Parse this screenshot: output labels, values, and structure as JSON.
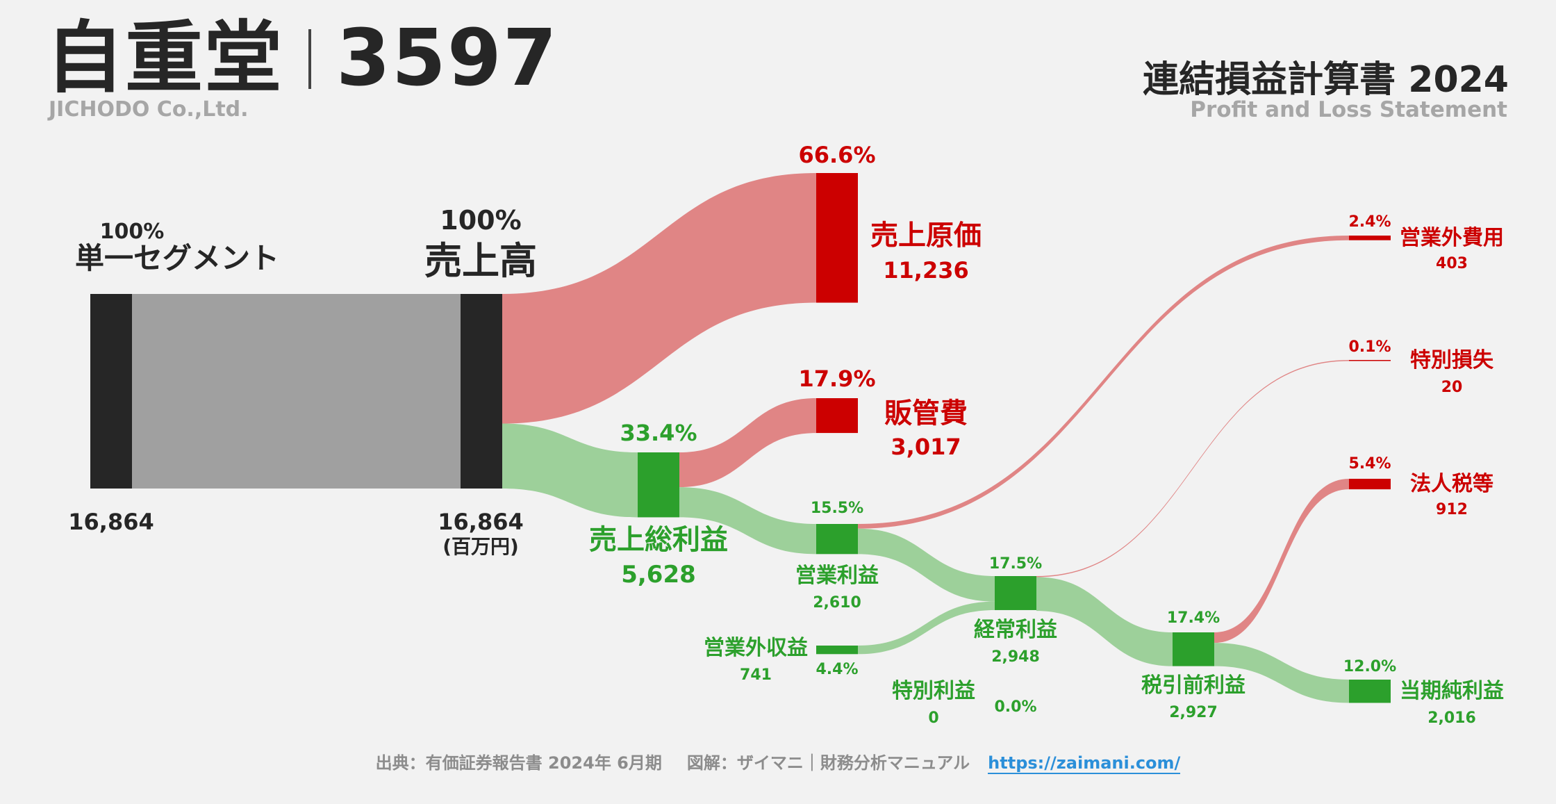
{
  "header": {
    "company_name": "自重堂",
    "ticker": "3597",
    "company_en": "JICHODO Co.,Ltd.",
    "statement_title": "連結損益計算書 2024",
    "statement_sub": "Profit and Loss Statement"
  },
  "footer": {
    "source": "出典：有価証券報告書 2024年 6月期",
    "credit": "図解：ザイマニ｜財務分析マニュアル",
    "url": "https://zaimani.com/"
  },
  "colors": {
    "revenue_bar": "#262626",
    "segment_flow": "#a0a0a0",
    "cost_node": "#cc0000",
    "cost_flow": "#e08585",
    "profit_node": "#2ca02c",
    "profit_flow": "#9dd09a"
  },
  "chart_data": {
    "type": "sankey",
    "unit": "(百万円)",
    "nodes": [
      {
        "id": "segment",
        "label": "単一セグメント",
        "value": 16864,
        "value_text": "16,864",
        "pct": "100%",
        "kind": "revenue"
      },
      {
        "id": "revenue",
        "label": "売上高",
        "value": 16864,
        "value_text": "16,864",
        "pct": "100%",
        "kind": "revenue"
      },
      {
        "id": "cogs",
        "label": "売上原価",
        "value": 11236,
        "value_text": "11,236",
        "pct": "66.6%",
        "kind": "cost"
      },
      {
        "id": "gross",
        "label": "売上総利益",
        "value": 5628,
        "value_text": "5,628",
        "pct": "33.4%",
        "kind": "profit"
      },
      {
        "id": "sga",
        "label": "販管費",
        "value": 3017,
        "value_text": "3,017",
        "pct": "17.9%",
        "kind": "cost"
      },
      {
        "id": "op",
        "label": "営業利益",
        "value": 2610,
        "value_text": "2,610",
        "pct": "15.5%",
        "kind": "profit"
      },
      {
        "id": "nonop_exp",
        "label": "営業外費用",
        "value": 403,
        "value_text": "403",
        "pct": "2.4%",
        "kind": "cost"
      },
      {
        "id": "nonop_inc",
        "label": "営業外収益",
        "value": 741,
        "value_text": "741",
        "pct": "4.4%",
        "kind": "profit"
      },
      {
        "id": "ordinary",
        "label": "経常利益",
        "value": 2948,
        "value_text": "2,948",
        "pct": "17.5%",
        "kind": "profit"
      },
      {
        "id": "extra_loss",
        "label": "特別損失",
        "value": 20,
        "value_text": "20",
        "pct": "0.1%",
        "kind": "cost"
      },
      {
        "id": "extra_gain",
        "label": "特別利益",
        "value": 0,
        "value_text": "0",
        "pct": "0.0%",
        "kind": "profit"
      },
      {
        "id": "pretax",
        "label": "税引前利益",
        "value": 2927,
        "value_text": "2,927",
        "pct": "17.4%",
        "kind": "profit"
      },
      {
        "id": "tax",
        "label": "法人税等",
        "value": 912,
        "value_text": "912",
        "pct": "5.4%",
        "kind": "cost"
      },
      {
        "id": "net",
        "label": "当期純利益",
        "value": 2016,
        "value_text": "2,016",
        "pct": "12.0%",
        "kind": "profit"
      }
    ],
    "links": [
      {
        "source": "segment",
        "target": "revenue",
        "value": 16864
      },
      {
        "source": "revenue",
        "target": "cogs",
        "value": 11236
      },
      {
        "source": "revenue",
        "target": "gross",
        "value": 5628
      },
      {
        "source": "gross",
        "target": "sga",
        "value": 3017
      },
      {
        "source": "gross",
        "target": "op",
        "value": 2610
      },
      {
        "source": "op",
        "target": "nonop_exp",
        "value": 403
      },
      {
        "source": "op",
        "target": "ordinary",
        "value": 2207
      },
      {
        "source": "nonop_inc",
        "target": "ordinary",
        "value": 741
      },
      {
        "source": "ordinary",
        "target": "extra_loss",
        "value": 20
      },
      {
        "source": "ordinary",
        "target": "pretax",
        "value": 2927
      },
      {
        "source": "pretax",
        "target": "tax",
        "value": 912
      },
      {
        "source": "pretax",
        "target": "net",
        "value": 2016
      }
    ]
  }
}
